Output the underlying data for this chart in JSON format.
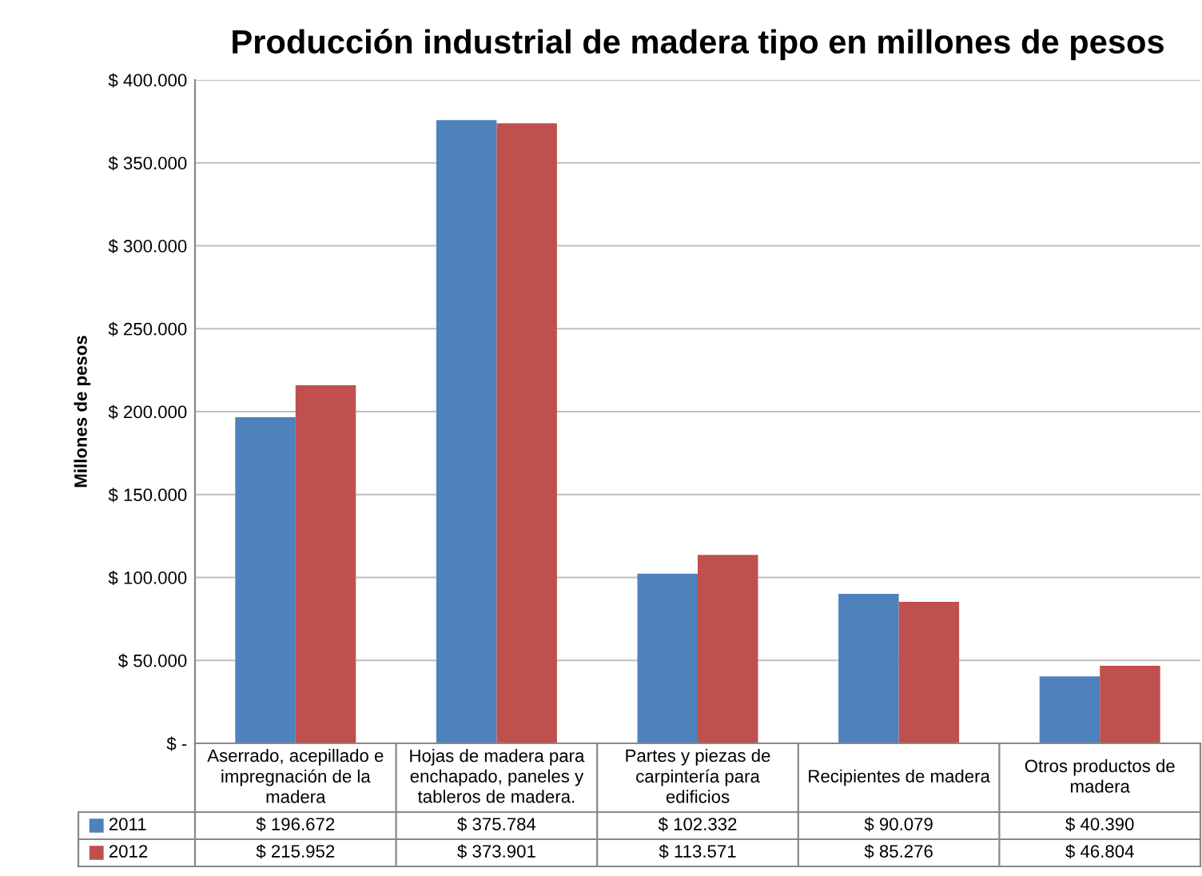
{
  "chart_data": {
    "type": "bar",
    "title": "Producción industrial de madera tipo en millones de pesos",
    "ylabel": "Millones de pesos",
    "categories": [
      "Aserrado, acepillado e impregnación de la madera",
      "Hojas de madera para enchapado, paneles y tableros de madera.",
      "Partes y piezas de carpintería para edificios",
      "Recipientes de madera",
      "Otros productos de madera"
    ],
    "series": [
      {
        "name": "2011",
        "color": "#4f81bd",
        "values": [
          196672,
          375784,
          102332,
          90079,
          40390
        ],
        "value_labels": [
          "$ 196.672",
          "$ 375.784",
          "$ 102.332",
          "$ 90.079",
          "$ 40.390"
        ]
      },
      {
        "name": "2012",
        "color": "#c0504d",
        "values": [
          215952,
          373901,
          113571,
          85276,
          46804
        ],
        "value_labels": [
          "$ 215.952",
          "$ 373.901",
          "$ 113.571",
          "$ 85.276",
          "$ 46.804"
        ]
      }
    ],
    "ylim": [
      0,
      400000
    ],
    "yticks": [
      {
        "value": 0,
        "label": "$ -"
      },
      {
        "value": 50000,
        "label": "$ 50.000"
      },
      {
        "value": 100000,
        "label": "$ 100.000"
      },
      {
        "value": 150000,
        "label": "$ 150.000"
      },
      {
        "value": 200000,
        "label": "$ 200.000"
      },
      {
        "value": 250000,
        "label": "$ 250.000"
      },
      {
        "value": 300000,
        "label": "$ 300.000"
      },
      {
        "value": 350000,
        "label": "$ 350.000"
      },
      {
        "value": 400000,
        "label": "$ 400.000"
      }
    ],
    "grid": "y",
    "legend": "bottom"
  }
}
